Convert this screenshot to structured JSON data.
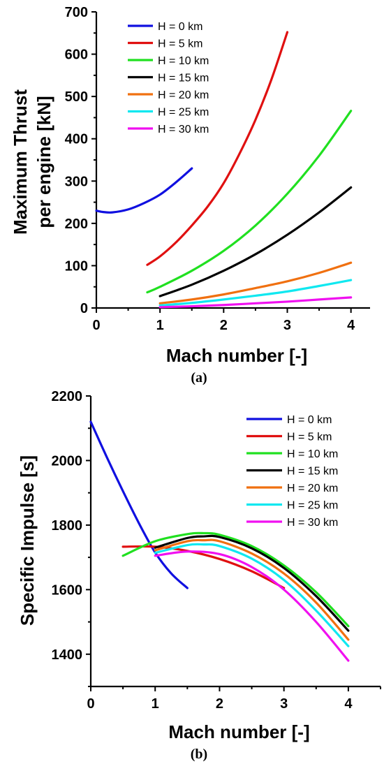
{
  "chart_data": [
    {
      "type": "line",
      "caption": "(a)",
      "xlabel": "Mach number [-]",
      "ylabel_lines": [
        "Maximum Thrust",
        "per engine [kN]"
      ],
      "xlim": [
        0,
        4.3
      ],
      "ylim": [
        0,
        700
      ],
      "xticks": [
        0,
        1,
        2,
        3,
        4
      ],
      "yticks": [
        0,
        100,
        200,
        300,
        400,
        500,
        600,
        700
      ],
      "legend_position": "top-left",
      "series": [
        {
          "name": "H = 0 km",
          "color": "#1010e0",
          "x": [
            0,
            0.1,
            0.25,
            0.5,
            0.75,
            1.0,
            1.25,
            1.5
          ],
          "y": [
            230,
            227,
            226,
            233,
            248,
            268,
            297,
            330
          ]
        },
        {
          "name": "H = 5 km",
          "color": "#e01010",
          "x": [
            0.8,
            1.0,
            1.25,
            1.5,
            1.75,
            2.0,
            2.25,
            2.5,
            2.75,
            3.0
          ],
          "y": [
            102,
            122,
            155,
            195,
            240,
            295,
            365,
            445,
            540,
            652
          ]
        },
        {
          "name": "H = 10 km",
          "color": "#20e020",
          "x": [
            0.8,
            1.0,
            1.5,
            2.0,
            2.5,
            3.0,
            3.5,
            4.0
          ],
          "y": [
            37,
            50,
            88,
            135,
            195,
            270,
            360,
            466
          ]
        },
        {
          "name": "H = 15 km",
          "color": "#000000",
          "x": [
            1.0,
            1.5,
            2.0,
            2.5,
            3.0,
            3.5,
            4.0
          ],
          "y": [
            28,
            55,
            88,
            127,
            173,
            226,
            285
          ]
        },
        {
          "name": "H = 20 km",
          "color": "#f07010",
          "x": [
            1.0,
            1.5,
            2.0,
            2.5,
            3.0,
            3.5,
            4.0
          ],
          "y": [
            11,
            20,
            32,
            47,
            63,
            83,
            107
          ]
        },
        {
          "name": "H = 25 km",
          "color": "#10e8f0",
          "x": [
            1.0,
            1.5,
            2.0,
            2.5,
            3.0,
            3.5,
            4.0
          ],
          "y": [
            6,
            12,
            20,
            29,
            39,
            52,
            66
          ]
        },
        {
          "name": "H = 30 km",
          "color": "#f010f0",
          "x": [
            1.0,
            1.5,
            2.0,
            2.5,
            3.0,
            3.5,
            4.0
          ],
          "y": [
            2,
            4,
            7,
            11,
            15,
            20,
            25
          ]
        }
      ]
    },
    {
      "type": "line",
      "caption": "(b)",
      "xlabel": "Mach number [-]",
      "ylabel_lines": [
        "Specific Impulse [s]"
      ],
      "xlim": [
        0,
        4.5
      ],
      "ylim": [
        1300,
        2200
      ],
      "xticks": [
        0,
        1,
        2,
        3,
        4
      ],
      "yticks": [
        1400,
        1600,
        1800,
        2000,
        2200
      ],
      "legend_position": "top-right",
      "series": [
        {
          "name": "H = 0 km",
          "color": "#1010e0",
          "x": [
            0,
            0.25,
            0.5,
            0.75,
            1.0,
            1.25,
            1.5
          ],
          "y": [
            2120,
            2010,
            1905,
            1805,
            1715,
            1650,
            1605
          ]
        },
        {
          "name": "H = 5 km",
          "color": "#e01010",
          "x": [
            0.5,
            1.0,
            1.5,
            2.0,
            2.5,
            3.0
          ],
          "y": [
            1733,
            1733,
            1720,
            1695,
            1657,
            1605
          ]
        },
        {
          "name": "H = 10 km",
          "color": "#20e020",
          "x": [
            0.5,
            1.0,
            1.5,
            1.75,
            2.0,
            2.5,
            3.0,
            3.5,
            4.0
          ],
          "y": [
            1705,
            1750,
            1772,
            1775,
            1770,
            1735,
            1675,
            1592,
            1487
          ]
        },
        {
          "name": "H = 15 km",
          "color": "#000000",
          "x": [
            1.0,
            1.5,
            1.75,
            2.0,
            2.5,
            3.0,
            3.5,
            4.0
          ],
          "y": [
            1730,
            1760,
            1765,
            1763,
            1728,
            1667,
            1580,
            1473
          ]
        },
        {
          "name": "H = 20 km",
          "color": "#f07010",
          "x": [
            1.0,
            1.5,
            1.75,
            2.0,
            2.5,
            3.0,
            3.5,
            4.0
          ],
          "y": [
            1722,
            1750,
            1753,
            1750,
            1712,
            1650,
            1560,
            1445
          ]
        },
        {
          "name": "H = 25 km",
          "color": "#10e8f0",
          "x": [
            1.0,
            1.5,
            1.75,
            2.0,
            2.5,
            3.0,
            3.5,
            4.0
          ],
          "y": [
            1714,
            1738,
            1740,
            1735,
            1696,
            1630,
            1535,
            1425
          ]
        },
        {
          "name": "H = 30 km",
          "color": "#f010f0",
          "x": [
            1.0,
            1.5,
            2.0,
            2.5,
            3.0,
            3.5,
            4.0
          ],
          "y": [
            1705,
            1718,
            1710,
            1670,
            1600,
            1500,
            1380
          ]
        }
      ]
    }
  ]
}
